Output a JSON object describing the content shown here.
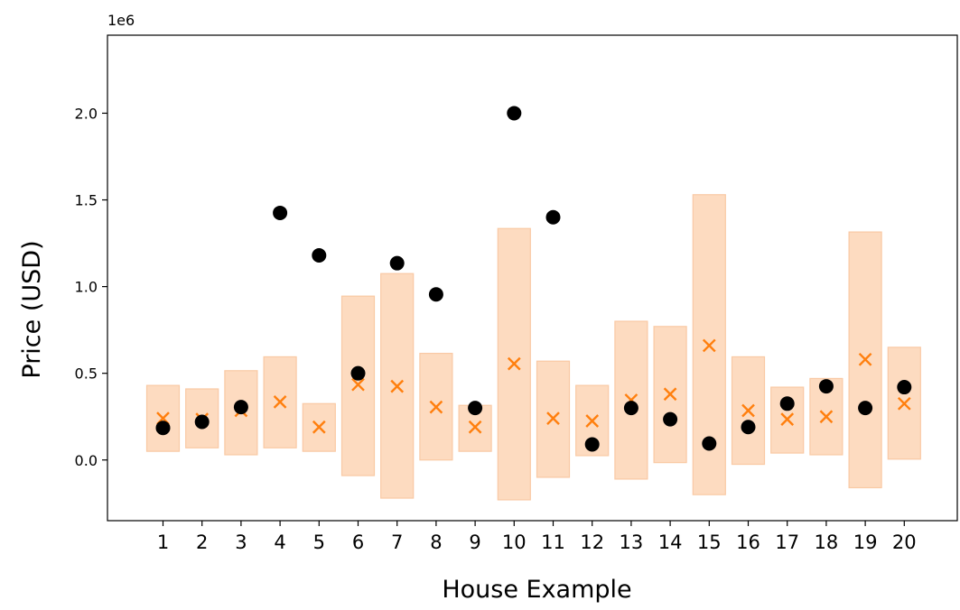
{
  "chart_data": {
    "type": "scatter",
    "xlabel": "House Example",
    "ylabel": "Price (USD)",
    "y_offset_label": "1e6",
    "categories": [
      "1",
      "2",
      "3",
      "4",
      "5",
      "6",
      "7",
      "8",
      "9",
      "10",
      "11",
      "12",
      "13",
      "14",
      "15",
      "16",
      "17",
      "18",
      "19",
      "20"
    ],
    "ylim": [
      -350000,
      2450000
    ],
    "y_ticks": [
      0,
      500000,
      1000000,
      1500000,
      2000000
    ],
    "y_tick_labels": [
      "0.0",
      "0.5",
      "1.0",
      "1.5",
      "2.0"
    ],
    "grid": false,
    "legend": "none",
    "series": [
      {
        "kind": "interval_bar",
        "color": "#fddbc0",
        "low": [
          50000,
          70000,
          30000,
          70000,
          50000,
          -90000,
          -220000,
          0,
          50000,
          -230000,
          -100000,
          25000,
          -110000,
          -15000,
          -200000,
          -25000,
          40000,
          30000,
          -160000,
          5000
        ],
        "high": [
          430000,
          410000,
          515000,
          595000,
          325000,
          945000,
          1075000,
          615000,
          315000,
          1335000,
          570000,
          430000,
          800000,
          770000,
          1530000,
          595000,
          420000,
          470000,
          1315000,
          650000
        ]
      },
      {
        "kind": "x_marker",
        "color": "#ff7f0e",
        "values": [
          240000,
          235000,
          285000,
          335000,
          190000,
          435000,
          425000,
          305000,
          190000,
          555000,
          240000,
          225000,
          345000,
          380000,
          660000,
          285000,
          235000,
          250000,
          580000,
          325000
        ]
      },
      {
        "kind": "dot_marker",
        "color": "#000000",
        "values": [
          185000,
          220000,
          305000,
          1425000,
          1180000,
          500000,
          1135000,
          955000,
          300000,
          2000000,
          1400000,
          90000,
          300000,
          235000,
          95000,
          190000,
          325000,
          425000,
          300000,
          420000
        ]
      }
    ]
  }
}
